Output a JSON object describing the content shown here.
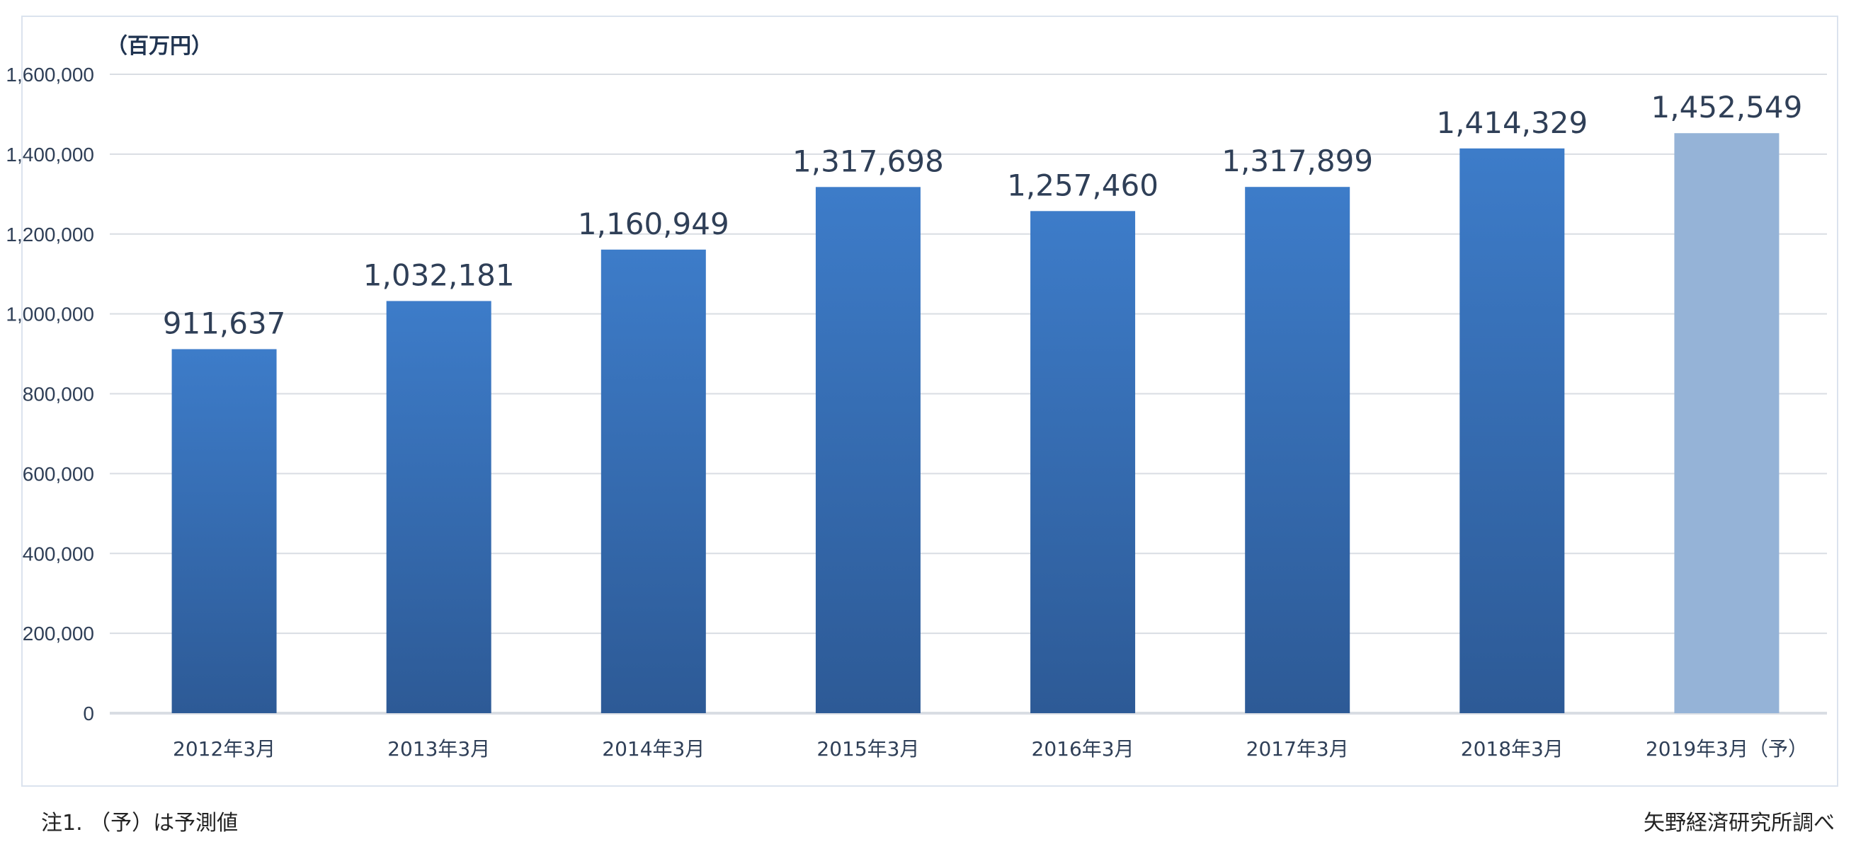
{
  "chart_data": {
    "type": "bar",
    "unit_label": "（百万円）",
    "categories": [
      "2012年3月",
      "2013年3月",
      "2014年3月",
      "2015年3月",
      "2016年3月",
      "2017年3月",
      "2018年3月",
      "2019年3月（予）"
    ],
    "values": [
      911637,
      1032181,
      1160949,
      1317698,
      1257460,
      1317899,
      1414329,
      1452549
    ],
    "data_labels": [
      "911,637",
      "1,032,181",
      "1,160,949",
      "1,317,698",
      "1,257,460",
      "1,317,899",
      "1,414,329",
      "1,452,549"
    ],
    "forecast": [
      false,
      false,
      false,
      false,
      false,
      false,
      false,
      true
    ],
    "ylim": [
      0,
      1600000
    ],
    "yticks": [
      "0",
      "200,000",
      "400,000",
      "600,000",
      "800,000",
      "1,000,000",
      "1,200,000",
      "1,400,000",
      "1,600,000"
    ],
    "grid": true,
    "colors": {
      "bar_top": "#3d7cc9",
      "bar_bottom": "#2d5a96",
      "forecast": "#95b3d7",
      "grid": "#d9dde3",
      "text": "#2f3f57"
    }
  },
  "footer": {
    "note": "注1. （予）は予測値",
    "source": "矢野経済研究所調べ"
  }
}
